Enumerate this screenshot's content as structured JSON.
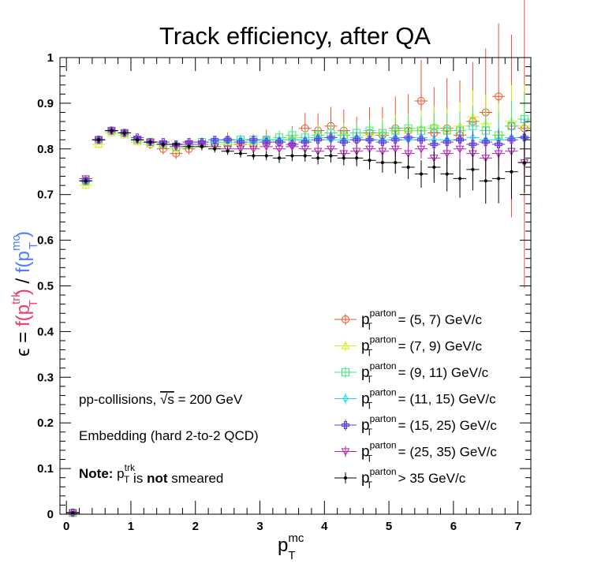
{
  "chart_data": {
    "type": "scatter",
    "title": "Track efficiency, after QA",
    "ylabel": {
      "prefix": "ϵ = ",
      "num": "f(p",
      "num_sup": "trk",
      "num_sub": "T",
      "num_close": ")",
      "div": " / ",
      "den": "f(p",
      "den_sup": "mc",
      "den_sub": "T",
      "den_close": ")",
      "num_color": "#e8406a",
      "den_color": "#4f7fff"
    },
    "xlabel": {
      "main": "p",
      "sup": "mc",
      "sub": "T"
    },
    "xlim": [
      -0.1,
      7.2
    ],
    "ylim": [
      0,
      1
    ],
    "xticks": [
      "0",
      "1",
      "2",
      "3",
      "4",
      "5",
      "6",
      "7"
    ],
    "yticks": [
      "0",
      "0.1",
      "0.2",
      "0.3",
      "0.4",
      "0.5",
      "0.6",
      "0.7",
      "0.8",
      "0.9",
      "1"
    ],
    "annotations": [
      {
        "parts": [
          {
            "t": "pp-collisions, "
          },
          {
            "t": "√s",
            "over": true
          },
          {
            "t": " = 200 GeV"
          }
        ]
      },
      {
        "parts": [
          {
            "t": "Embedding (hard 2-to-2 QCD)"
          }
        ]
      },
      {
        "parts": [
          {
            "t": "Note: ",
            "bold": true
          },
          {
            "t": "p"
          },
          {
            "t": "trk",
            "sup": true
          },
          {
            "t": "T",
            "sub": true
          },
          {
            "t": " is "
          },
          {
            "t": "not",
            "bold": true
          },
          {
            "t": " smeared"
          }
        ]
      }
    ],
    "series": [
      {
        "name": "(5, 7) GeV/c",
        "legend_prefix": "= ",
        "color": "#e8552a",
        "marker": "circle",
        "x": [
          0.1,
          0.3,
          0.5,
          0.7,
          0.9,
          1.1,
          1.3,
          1.5,
          1.7,
          1.9,
          2.1,
          2.3,
          2.5,
          2.7,
          2.9,
          3.1,
          3.3,
          3.5,
          3.7,
          3.9,
          4.1,
          4.3,
          4.5,
          4.7,
          4.9,
          5.1,
          5.3,
          5.5,
          5.7,
          5.9,
          6.1,
          6.3,
          6.5,
          6.7,
          6.9,
          7.1
        ],
        "y": [
          0.004,
          0.73,
          0.82,
          0.84,
          0.835,
          0.82,
          0.81,
          0.8,
          0.79,
          0.8,
          0.81,
          0.81,
          0.82,
          0.81,
          0.81,
          0.82,
          0.815,
          0.82,
          0.845,
          0.84,
          0.85,
          0.84,
          0.82,
          0.835,
          0.83,
          0.845,
          0.84,
          0.905,
          0.835,
          0.845,
          0.83,
          0.86,
          0.88,
          0.915,
          0.85,
          0.845
        ],
        "err": [
          0.002,
          0.01,
          0.01,
          0.01,
          0.01,
          0.01,
          0.01,
          0.012,
          0.012,
          0.012,
          0.014,
          0.014,
          0.016,
          0.018,
          0.02,
          0.022,
          0.025,
          0.03,
          0.034,
          0.038,
          0.042,
          0.046,
          0.05,
          0.056,
          0.062,
          0.07,
          0.08,
          0.09,
          0.1,
          0.11,
          0.12,
          0.13,
          0.14,
          0.16,
          0.2,
          0.35
        ]
      },
      {
        "name": "(7, 9) GeV/c",
        "legend_prefix": "= ",
        "color": "#d6ee1a",
        "marker": "triangle",
        "x": [
          0.1,
          0.3,
          0.5,
          0.7,
          0.9,
          1.1,
          1.3,
          1.5,
          1.7,
          1.9,
          2.1,
          2.3,
          2.5,
          2.7,
          2.9,
          3.1,
          3.3,
          3.5,
          3.7,
          3.9,
          4.1,
          4.3,
          4.5,
          4.7,
          4.9,
          5.1,
          5.3,
          5.5,
          5.7,
          5.9,
          6.1,
          6.3,
          6.5,
          6.7,
          6.9,
          7.1
        ],
        "y": [
          0.003,
          0.72,
          0.81,
          0.835,
          0.83,
          0.815,
          0.81,
          0.81,
          0.8,
          0.81,
          0.815,
          0.81,
          0.81,
          0.815,
          0.81,
          0.815,
          0.82,
          0.825,
          0.82,
          0.83,
          0.825,
          0.83,
          0.825,
          0.83,
          0.835,
          0.84,
          0.84,
          0.845,
          0.85,
          0.84,
          0.85,
          0.87,
          0.855,
          0.83,
          0.86,
          0.85
        ],
        "err": [
          0.002,
          0.008,
          0.008,
          0.008,
          0.008,
          0.008,
          0.008,
          0.009,
          0.009,
          0.01,
          0.01,
          0.011,
          0.012,
          0.013,
          0.014,
          0.015,
          0.016,
          0.018,
          0.02,
          0.022,
          0.024,
          0.026,
          0.028,
          0.03,
          0.032,
          0.034,
          0.036,
          0.04,
          0.044,
          0.048,
          0.052,
          0.058,
          0.064,
          0.07,
          0.08,
          0.09
        ]
      },
      {
        "name": "(9, 11) GeV/c",
        "legend_prefix": "= ",
        "color": "#3ee87a",
        "marker": "square",
        "x": [
          0.1,
          0.3,
          0.5,
          0.7,
          0.9,
          1.1,
          1.3,
          1.5,
          1.7,
          1.9,
          2.1,
          2.3,
          2.5,
          2.7,
          2.9,
          3.1,
          3.3,
          3.5,
          3.7,
          3.9,
          4.1,
          4.3,
          4.5,
          4.7,
          4.9,
          5.1,
          5.3,
          5.5,
          5.7,
          5.9,
          6.1,
          6.3,
          6.5,
          6.7,
          6.9,
          7.1
        ],
        "y": [
          0.003,
          0.73,
          0.82,
          0.84,
          0.835,
          0.82,
          0.815,
          0.81,
          0.805,
          0.81,
          0.815,
          0.815,
          0.815,
          0.82,
          0.82,
          0.82,
          0.825,
          0.83,
          0.825,
          0.83,
          0.835,
          0.83,
          0.835,
          0.84,
          0.835,
          0.84,
          0.845,
          0.84,
          0.845,
          0.84,
          0.84,
          0.85,
          0.84,
          0.83,
          0.85,
          0.865
        ],
        "err": [
          0.002,
          0.008,
          0.008,
          0.008,
          0.008,
          0.008,
          0.008,
          0.008,
          0.009,
          0.009,
          0.01,
          0.01,
          0.011,
          0.012,
          0.013,
          0.014,
          0.015,
          0.016,
          0.017,
          0.018,
          0.02,
          0.021,
          0.022,
          0.024,
          0.026,
          0.028,
          0.03,
          0.032,
          0.034,
          0.036,
          0.04,
          0.044,
          0.048,
          0.052,
          0.056,
          0.06
        ]
      },
      {
        "name": "(11, 15) GeV/c",
        "legend_prefix": "= ",
        "color": "#1ad8e6",
        "marker": "diamond",
        "x": [
          0.1,
          0.3,
          0.5,
          0.7,
          0.9,
          1.1,
          1.3,
          1.5,
          1.7,
          1.9,
          2.1,
          2.3,
          2.5,
          2.7,
          2.9,
          3.1,
          3.3,
          3.5,
          3.7,
          3.9,
          4.1,
          4.3,
          4.5,
          4.7,
          4.9,
          5.1,
          5.3,
          5.5,
          5.7,
          5.9,
          6.1,
          6.3,
          6.5,
          6.7,
          6.9,
          7.1
        ],
        "y": [
          0.003,
          0.73,
          0.82,
          0.84,
          0.835,
          0.82,
          0.815,
          0.81,
          0.81,
          0.81,
          0.815,
          0.815,
          0.82,
          0.82,
          0.815,
          0.82,
          0.82,
          0.82,
          0.82,
          0.825,
          0.82,
          0.82,
          0.825,
          0.82,
          0.82,
          0.825,
          0.82,
          0.825,
          0.82,
          0.82,
          0.82,
          0.825,
          0.82,
          0.82,
          0.825,
          0.825
        ],
        "err": [
          0.002,
          0.006,
          0.006,
          0.006,
          0.006,
          0.006,
          0.006,
          0.006,
          0.007,
          0.007,
          0.008,
          0.008,
          0.009,
          0.01,
          0.01,
          0.011,
          0.012,
          0.013,
          0.014,
          0.015,
          0.016,
          0.017,
          0.018,
          0.02,
          0.021,
          0.022,
          0.024,
          0.026,
          0.028,
          0.03,
          0.032,
          0.034,
          0.036,
          0.04,
          0.044,
          0.048
        ]
      },
      {
        "name": "(15, 25) GeV/c",
        "legend_prefix": "= ",
        "color": "#5a3fe6",
        "marker": "cross",
        "x": [
          0.1,
          0.3,
          0.5,
          0.7,
          0.9,
          1.1,
          1.3,
          1.5,
          1.7,
          1.9,
          2.1,
          2.3,
          2.5,
          2.7,
          2.9,
          3.1,
          3.3,
          3.5,
          3.7,
          3.9,
          4.1,
          4.3,
          4.5,
          4.7,
          4.9,
          5.1,
          5.3,
          5.5,
          5.7,
          5.9,
          6.1,
          6.3,
          6.5,
          6.7,
          6.9,
          7.1
        ],
        "y": [
          0.003,
          0.73,
          0.82,
          0.84,
          0.835,
          0.825,
          0.815,
          0.815,
          0.81,
          0.815,
          0.815,
          0.82,
          0.82,
          0.815,
          0.82,
          0.815,
          0.815,
          0.81,
          0.815,
          0.82,
          0.825,
          0.815,
          0.82,
          0.82,
          0.815,
          0.82,
          0.825,
          0.82,
          0.81,
          0.815,
          0.82,
          0.81,
          0.815,
          0.81,
          0.82,
          0.825
        ],
        "err": [
          0.002,
          0.006,
          0.006,
          0.006,
          0.006,
          0.006,
          0.006,
          0.006,
          0.006,
          0.007,
          0.007,
          0.008,
          0.008,
          0.009,
          0.009,
          0.01,
          0.011,
          0.012,
          0.012,
          0.013,
          0.014,
          0.015,
          0.016,
          0.017,
          0.018,
          0.02,
          0.021,
          0.022,
          0.024,
          0.026,
          0.028,
          0.03,
          0.032,
          0.034,
          0.036,
          0.04
        ]
      },
      {
        "name": "(25, 35) GeV/c",
        "legend_prefix": "= ",
        "color": "#b420b4",
        "marker": "triangle-down",
        "x": [
          0.1,
          0.3,
          0.5,
          0.7,
          0.9,
          1.1,
          1.3,
          1.5,
          1.7,
          1.9,
          2.1,
          2.3,
          2.5,
          2.7,
          2.9,
          3.1,
          3.3,
          3.5,
          3.7,
          3.9,
          4.1,
          4.3,
          4.5,
          4.7,
          4.9,
          5.1,
          5.3,
          5.5,
          5.7,
          5.9,
          6.1,
          6.3,
          6.5,
          6.7,
          6.9,
          7.1
        ],
        "y": [
          0.003,
          0.735,
          0.82,
          0.84,
          0.835,
          0.82,
          0.815,
          0.81,
          0.805,
          0.81,
          0.81,
          0.805,
          0.8,
          0.8,
          0.8,
          0.805,
          0.8,
          0.805,
          0.8,
          0.795,
          0.8,
          0.79,
          0.795,
          0.8,
          0.795,
          0.8,
          0.79,
          0.8,
          0.78,
          0.79,
          0.8,
          0.79,
          0.78,
          0.79,
          0.795,
          0.77
        ],
        "err": [
          0.002,
          0.006,
          0.006,
          0.006,
          0.006,
          0.006,
          0.006,
          0.006,
          0.006,
          0.007,
          0.007,
          0.008,
          0.008,
          0.009,
          0.009,
          0.01,
          0.01,
          0.011,
          0.012,
          0.012,
          0.013,
          0.014,
          0.015,
          0.016,
          0.017,
          0.018,
          0.02,
          0.021,
          0.022,
          0.024,
          0.026,
          0.028,
          0.03,
          0.032,
          0.034,
          0.036
        ]
      },
      {
        "name": "> 35 GeV/c",
        "legend_prefix": "",
        "color": "#000000",
        "marker": "dot",
        "x": [
          0.1,
          0.3,
          0.5,
          0.7,
          0.9,
          1.1,
          1.3,
          1.5,
          1.7,
          1.9,
          2.1,
          2.3,
          2.5,
          2.7,
          2.9,
          3.1,
          3.3,
          3.5,
          3.7,
          3.9,
          4.1,
          4.3,
          4.5,
          4.7,
          4.9,
          5.1,
          5.3,
          5.5,
          5.7,
          5.9,
          6.1,
          6.3,
          6.5,
          6.7,
          6.9,
          7.1
        ],
        "y": [
          0.003,
          0.73,
          0.82,
          0.84,
          0.835,
          0.82,
          0.815,
          0.81,
          0.81,
          0.805,
          0.805,
          0.8,
          0.795,
          0.79,
          0.785,
          0.785,
          0.78,
          0.785,
          0.785,
          0.78,
          0.785,
          0.78,
          0.78,
          0.775,
          0.77,
          0.77,
          0.76,
          0.745,
          0.76,
          0.745,
          0.735,
          0.755,
          0.73,
          0.735,
          0.75,
          0.77
        ],
        "err": [
          0.002,
          0.006,
          0.006,
          0.006,
          0.006,
          0.006,
          0.006,
          0.006,
          0.006,
          0.007,
          0.007,
          0.008,
          0.008,
          0.009,
          0.009,
          0.01,
          0.011,
          0.012,
          0.013,
          0.014,
          0.015,
          0.016,
          0.018,
          0.02,
          0.022,
          0.024,
          0.026,
          0.03,
          0.034,
          0.038,
          0.042,
          0.046,
          0.05,
          0.054,
          0.06,
          0.066
        ]
      }
    ],
    "legend": {
      "label_main": "p",
      "label_sup": "parton",
      "label_sub": "T",
      "placement": "bottom-right"
    }
  }
}
